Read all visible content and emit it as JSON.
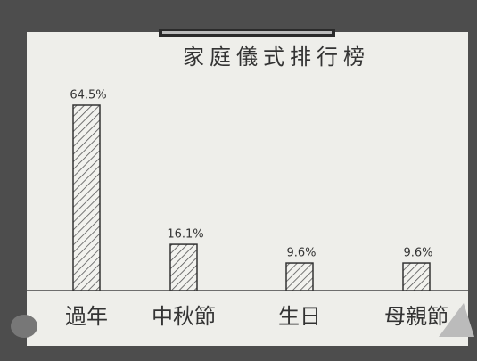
{
  "chart_data": {
    "type": "bar",
    "title": "家庭儀式排行榜",
    "categories": [
      "過年",
      "中秋節",
      "生日",
      "母親節"
    ],
    "values": [
      64.5,
      16.1,
      9.6,
      9.6
    ],
    "value_labels": [
      "64.5%",
      "16.1%",
      "9.6%",
      "9.6%"
    ]
  }
}
